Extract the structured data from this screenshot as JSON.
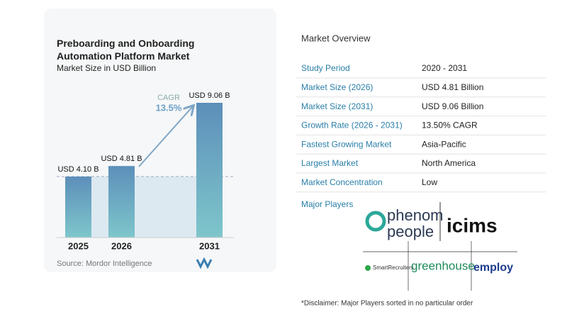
{
  "chart_data": {
    "type": "bar",
    "title": "Preboarding and Onboarding Automation Platform Market",
    "subtitle": "Market Size in USD Billion",
    "categories": [
      "2025",
      "2026",
      "2031"
    ],
    "values": [
      4.1,
      4.81,
      9.06
    ],
    "value_labels": [
      "USD 4.10 B",
      "USD 4.81 B",
      "USD 9.06 B"
    ],
    "annotation": {
      "label": "CAGR",
      "value": "13.5%"
    },
    "source": "Source: Mordor Intelligence"
  },
  "overview": {
    "title": "Market Overview",
    "rows": [
      [
        "Study Period",
        "2020 - 2031"
      ],
      [
        "Market Size (2026)",
        "USD 4.81 Billion"
      ],
      [
        "Market Size (2031)",
        "USD 9.06 Billion"
      ],
      [
        "Growth Rate (2026 - 2031)",
        "13.50% CAGR"
      ],
      [
        "Fastest Growing Market",
        "Asia-Pacific"
      ],
      [
        "Largest Market",
        "North America"
      ],
      [
        "Market Concentration",
        "Low"
      ]
    ],
    "players_label": "Major Players",
    "players": [
      "phenom",
      "people",
      "icims",
      "SmartRecruiters",
      "greenhouse",
      "employ"
    ],
    "disclaimer": "*Disclaimer: Major Players sorted in no particular order"
  }
}
